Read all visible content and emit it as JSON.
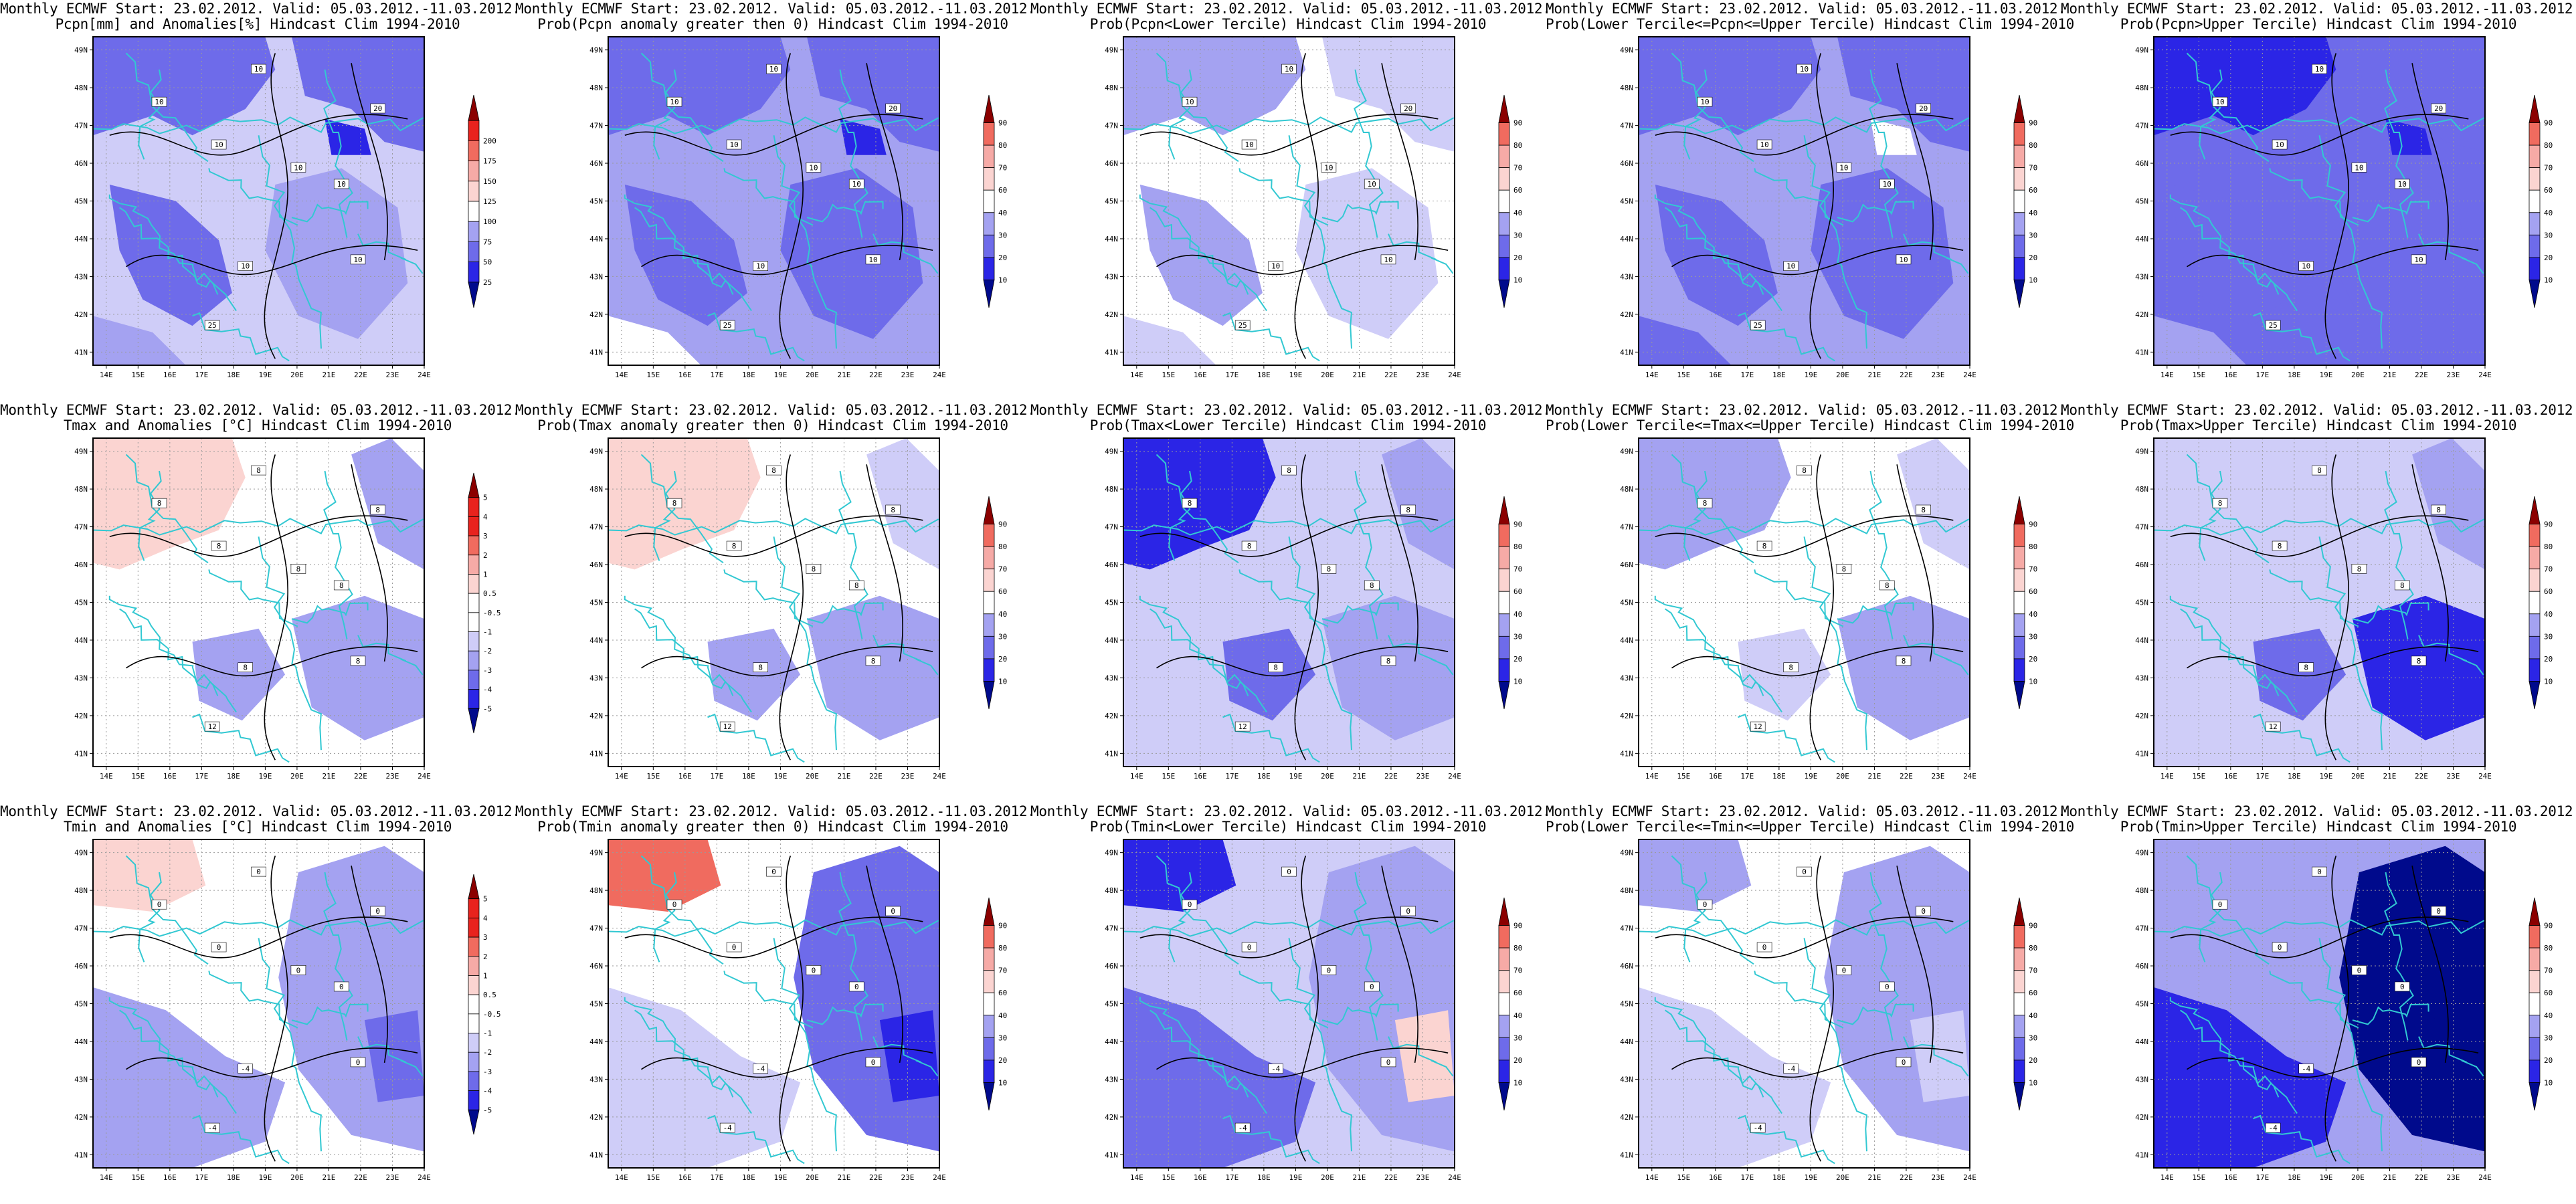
{
  "colors": {
    "dark_red": "#8b0000",
    "red": "#e8231e",
    "mid_red": "#f06b5f",
    "light_red": "#f6aaa6",
    "pale_red": "#fbd4d1",
    "white": "#ffffff",
    "pale_blue": "#cfcdf8",
    "light_blue": "#a4a2f1",
    "mid_blue": "#6e6bea",
    "blue": "#2b25e6",
    "dark_blue": "#000a8c",
    "borders": "#32c8d2",
    "contours": "#000000"
  },
  "axes": {
    "lat_ticks": [
      "49N",
      "48N",
      "47N",
      "46N",
      "45N",
      "44N",
      "43N",
      "42N",
      "41N"
    ],
    "lon_ticks": [
      "14E",
      "15E",
      "16E",
      "17E",
      "18E",
      "19E",
      "20E",
      "21E",
      "22E",
      "23E",
      "24E"
    ]
  },
  "legends": {
    "percent": [
      "25",
      "50",
      "75",
      "100",
      "125",
      "150",
      "175",
      "200"
    ],
    "temperature": [
      "-5",
      "-4",
      "-3",
      "-2",
      "-1",
      "-0.5",
      "0.5",
      "1",
      "2",
      "3",
      "4",
      "5"
    ],
    "probability": [
      "10",
      "20",
      "30",
      "40",
      "60",
      "70",
      "80",
      "90"
    ]
  },
  "panels": [
    {
      "title_line1": "Monthly ECMWF Start: 23.02.2012. Valid: 05.03.2012.-11.03.2012.",
      "title_line2": "Pcpn[mm] and Anomalies[%] Hindcast Clim 1994-2010",
      "legend": "percent",
      "bg": "pale_blue",
      "labels": [
        "10",
        "20",
        "10",
        "10",
        "10",
        "10",
        "10",
        "10",
        "25"
      ]
    },
    {
      "title_line1": "Monthly ECMWF Start: 23.02.2012. Valid: 05.03.2012.-11.03.2012.",
      "title_line2": "Prob(Pcpn anomaly greater then 0) Hindcast Clim 1994-2010",
      "legend": "probability",
      "bg": "light_blue",
      "labels": [
        "10",
        "20",
        "10",
        "10",
        "10",
        "10",
        "10",
        "10",
        "25"
      ]
    },
    {
      "title_line1": "Monthly ECMWF Start: 23.02.2012. Valid: 05.03.2012.-11.03.2012.",
      "title_line2": "Prob(Pcpn<Lower Tercile) Hindcast Clim 1994-2010",
      "legend": "probability",
      "bg": "white",
      "labels": [
        "10",
        "20",
        "10",
        "10",
        "10",
        "10",
        "10",
        "10",
        "25"
      ]
    },
    {
      "title_line1": "Monthly ECMWF Start: 23.02.2012. Valid: 05.03.2012.-11.03.2012.",
      "title_line2": "Prob(Lower Tercile<=Pcpn<=Upper Tercile) Hindcast Clim 1994-2010",
      "legend": "probability",
      "bg": "light_blue",
      "labels": [
        "10",
        "20",
        "10",
        "10",
        "10",
        "10",
        "10",
        "10",
        "25"
      ]
    },
    {
      "title_line1": "Monthly ECMWF Start: 23.02.2012. Valid: 05.03.2012.-11.03.2012.",
      "title_line2": "Prob(Pcpn>Upper Tercile) Hindcast Clim 1994-2010",
      "legend": "probability",
      "bg": "mid_blue",
      "labels": [
        "10",
        "20",
        "10",
        "10",
        "10",
        "10",
        "10",
        "10",
        "25"
      ]
    },
    {
      "title_line1": "Monthly ECMWF Start: 23.02.2012. Valid: 05.03.2012.-11.03.2012.",
      "title_line2": "Tmax and Anomalies [°C] Hindcast Clim 1994-2010",
      "legend": "temperature",
      "bg": "white",
      "labels": [
        "8",
        "8",
        "8",
        "8",
        "8",
        "8",
        "8",
        "8",
        "12"
      ]
    },
    {
      "title_line1": "Monthly ECMWF Start: 23.02.2012. Valid: 05.03.2012.-11.03.2012.",
      "title_line2": "Prob(Tmax anomaly greater then 0) Hindcast Clim 1994-2010",
      "legend": "probability",
      "bg": "white",
      "labels": [
        "8",
        "8",
        "8",
        "8",
        "8",
        "8",
        "8",
        "8",
        "12"
      ]
    },
    {
      "title_line1": "Monthly ECMWF Start: 23.02.2012. Valid: 05.03.2012.-11.03.2012.",
      "title_line2": "Prob(Tmax<Lower Tercile) Hindcast Clim 1994-2010",
      "legend": "probability",
      "bg": "pale_blue",
      "labels": [
        "8",
        "8",
        "8",
        "8",
        "8",
        "8",
        "8",
        "8",
        "12"
      ]
    },
    {
      "title_line1": "Monthly ECMWF Start: 23.02.2012. Valid: 05.03.2012.-11.03.2012.",
      "title_line2": "Prob(Lower Tercile<=Tmax<=Upper Tercile) Hindcast Clim 1994-2010",
      "legend": "probability",
      "bg": "white",
      "labels": [
        "8",
        "8",
        "8",
        "8",
        "8",
        "8",
        "8",
        "8",
        "12"
      ]
    },
    {
      "title_line1": "Monthly ECMWF Start: 23.02.2012. Valid: 05.03.2012.-11.03.2012.",
      "title_line2": "Prob(Tmax>Upper Tercile) Hindcast Clim 1994-2010",
      "legend": "probability",
      "bg": "pale_blue",
      "labels": [
        "8",
        "8",
        "8",
        "8",
        "8",
        "8",
        "8",
        "8",
        "12"
      ]
    },
    {
      "title_line1": "Monthly ECMWF Start: 23.02.2012. Valid: 05.03.2012.-11.03.2012.",
      "title_line2": "Tmin and Anomalies [°C] Hindcast Clim 1994-2010",
      "legend": "temperature",
      "bg": "white",
      "labels": [
        "0",
        "0",
        "0",
        "0",
        "0",
        "0",
        "-4",
        "0",
        "-4"
      ]
    },
    {
      "title_line1": "Monthly ECMWF Start: 23.02.2012. Valid: 05.03.2012.-11.03.2012.",
      "title_line2": "Prob(Tmin anomaly greater then 0) Hindcast Clim 1994-2010",
      "legend": "probability",
      "bg": "white",
      "labels": [
        "0",
        "0",
        "0",
        "0",
        "0",
        "0",
        "-4",
        "0",
        "-4"
      ]
    },
    {
      "title_line1": "Monthly ECMWF Start: 23.02.2012. Valid: 05.03.2012.-11.03.2012.",
      "title_line2": "Prob(Tmin<Lower Tercile) Hindcast Clim 1994-2010",
      "legend": "probability",
      "bg": "pale_blue",
      "labels": [
        "0",
        "0",
        "0",
        "0",
        "0",
        "0",
        "-4",
        "0",
        "-4"
      ]
    },
    {
      "title_line1": "Monthly ECMWF Start: 23.02.2012. Valid: 05.03.2012.-11.03.2012.",
      "title_line2": "Prob(Lower Tercile<=Tmin<=Upper Tercile) Hindcast Clim 1994-2010",
      "legend": "probability",
      "bg": "white",
      "labels": [
        "0",
        "0",
        "0",
        "0",
        "0",
        "0",
        "-4",
        "0",
        "-4"
      ]
    },
    {
      "title_line1": "Monthly ECMWF Start: 23.02.2012. Valid: 05.03.2012.-11.03.2012.",
      "title_line2": "Prob(Tmin>Upper Tercile) Hindcast Clim 1994-2010",
      "legend": "probability",
      "bg": "light_blue",
      "labels": [
        "0",
        "0",
        "0",
        "0",
        "0",
        "0",
        "-4",
        "0",
        "-4"
      ]
    }
  ]
}
